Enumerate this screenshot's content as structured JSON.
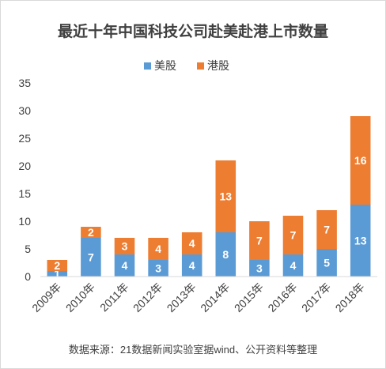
{
  "chart_data": {
    "type": "bar",
    "stacked": true,
    "title": "最近十年中国科技公司赴美赴港上市数量",
    "categories": [
      "2009年",
      "2010年",
      "2011年",
      "2012年",
      "2013年",
      "2014年",
      "2015年",
      "2016年",
      "2017年",
      "2018年"
    ],
    "series": [
      {
        "name": "美股",
        "color": "#5b9bd5",
        "values": [
          1,
          7,
          4,
          3,
          4,
          8,
          3,
          4,
          5,
          13
        ]
      },
      {
        "name": "港股",
        "color": "#ed7d31",
        "values": [
          2,
          2,
          3,
          4,
          4,
          13,
          7,
          7,
          7,
          16
        ]
      }
    ],
    "ylim": [
      0,
      35
    ],
    "yticks": [
      0,
      5,
      10,
      15,
      20,
      25,
      30,
      35
    ],
    "grid": false,
    "legend": "top-center",
    "data_labels": true,
    "xlabel": "",
    "ylabel": "",
    "source_note": "数据来源：21数据新闻实验室据wind、公开资料等整理"
  }
}
